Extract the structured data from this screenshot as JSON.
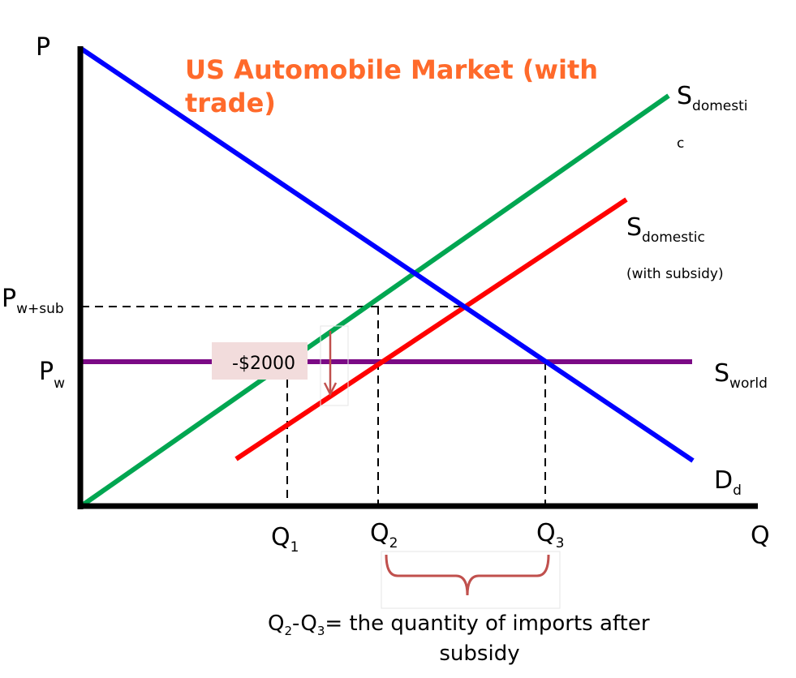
{
  "title_line1": "US Automobile Market (with",
  "title_line2": "trade)",
  "axes": {
    "y": {
      "main": "P"
    },
    "x": {
      "main": "Q"
    }
  },
  "price_labels": {
    "p_wsub": {
      "main": "P",
      "sub": "w+sub"
    },
    "p_w": {
      "main": "P",
      "sub": "w"
    }
  },
  "curve_labels": {
    "s_domestic": {
      "main": "S",
      "sub_line1": "domesti",
      "sub_line2": "c"
    },
    "s_domestic_subsidy": {
      "main": "S",
      "sub": "domestic",
      "note": "(with subsidy)"
    },
    "s_world": {
      "main": "S",
      "sub": "world"
    },
    "d_d": {
      "main": "D",
      "sub": "d"
    }
  },
  "quantities": [
    {
      "main": "Q",
      "sub": "1"
    },
    {
      "main": "Q",
      "sub": "2"
    },
    {
      "main": "Q",
      "sub": "3"
    }
  ],
  "subsidy_label": "-$2000",
  "caption": {
    "line1_parts": [
      "Q",
      "2",
      "-Q",
      "3",
      "= the quantity of imports after"
    ],
    "line2": "subsidy"
  },
  "colors": {
    "demand": "#0000ff",
    "supply_domestic": "#00a651",
    "supply_with_subsidy": "#ff0000",
    "supply_world": "#7b0a85",
    "title": "#ff6a2b",
    "subsidy_box": "#f2dcdc",
    "subsidy_arrow": "#c0504d",
    "brace": "#c0504d"
  }
}
